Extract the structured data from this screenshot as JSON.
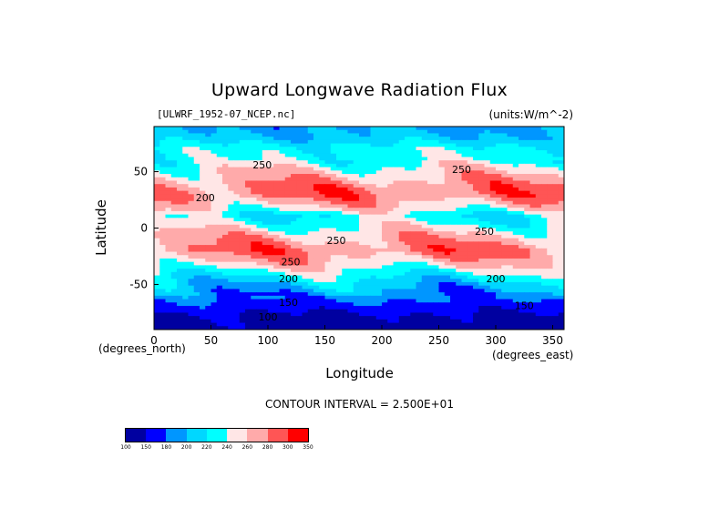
{
  "title": "Upward Longwave Radiation Flux",
  "subtitle_left": "[ULWRF_1952-07_NCEP.nc]",
  "subtitle_right": "(units:W/m^-2)",
  "contour_interval_text": "CONTOUR INTERVAL = 2.500E+01",
  "chart_data": {
    "type": "heatmap",
    "title": "Upward Longwave Radiation Flux",
    "xlabel": "Longitude",
    "ylabel": "Latitude",
    "x_unit": "(degrees_east)",
    "y_unit": "(degrees_north)",
    "xlim": [
      0,
      360
    ],
    "ylim": [
      -90,
      90
    ],
    "x_ticks": [
      0,
      50,
      100,
      150,
      200,
      250,
      300,
      350
    ],
    "y_ticks": [
      -50,
      0,
      50
    ],
    "contour_interval": 25,
    "contour_labels": [
      {
        "text": "250",
        "lon": 95,
        "lat": 53
      },
      {
        "text": "200",
        "lon": 45,
        "lat": 24
      },
      {
        "text": "250",
        "lon": 270,
        "lat": 49
      },
      {
        "text": "250",
        "lon": 160,
        "lat": -14
      },
      {
        "text": "250",
        "lon": 290,
        "lat": -6
      },
      {
        "text": "250",
        "lon": 120,
        "lat": -33
      },
      {
        "text": "200",
        "lon": 118,
        "lat": -48
      },
      {
        "text": "200",
        "lon": 300,
        "lat": -48
      },
      {
        "text": "150",
        "lon": 118,
        "lat": -69
      },
      {
        "text": "100",
        "lon": 100,
        "lat": -82
      },
      {
        "text": "150",
        "lon": 325,
        "lat": -72
      }
    ],
    "colorbar": {
      "levels": [
        100,
        150,
        180,
        200,
        220,
        240,
        260,
        280,
        300,
        350
      ],
      "colors": [
        "#0000a0",
        "#0000ff",
        "#0096ff",
        "#00d7ff",
        "#00ffff",
        "#ffe6e6",
        "#ffaaaa",
        "#ff5555",
        "#ff0000"
      ]
    },
    "lat_bands": [
      {
        "lat": 90,
        "value": 195
      },
      {
        "lat": 80,
        "value": 205
      },
      {
        "lat": 70,
        "value": 230
      },
      {
        "lat": 60,
        "value": 235
      },
      {
        "lat": 50,
        "value": 255
      },
      {
        "lat": 40,
        "value": 275
      },
      {
        "lat": 30,
        "value": 285
      },
      {
        "lat": 20,
        "value": 262
      },
      {
        "lat": 10,
        "value": 225
      },
      {
        "lat": 0,
        "value": 248
      },
      {
        "lat": -10,
        "value": 270
      },
      {
        "lat": -20,
        "value": 282
      },
      {
        "lat": -30,
        "value": 262
      },
      {
        "lat": -40,
        "value": 232
      },
      {
        "lat": -50,
        "value": 205
      },
      {
        "lat": -60,
        "value": 188
      },
      {
        "lat": -70,
        "value": 165
      },
      {
        "lat": -80,
        "value": 140
      },
      {
        "lat": -90,
        "value": 135
      }
    ]
  }
}
